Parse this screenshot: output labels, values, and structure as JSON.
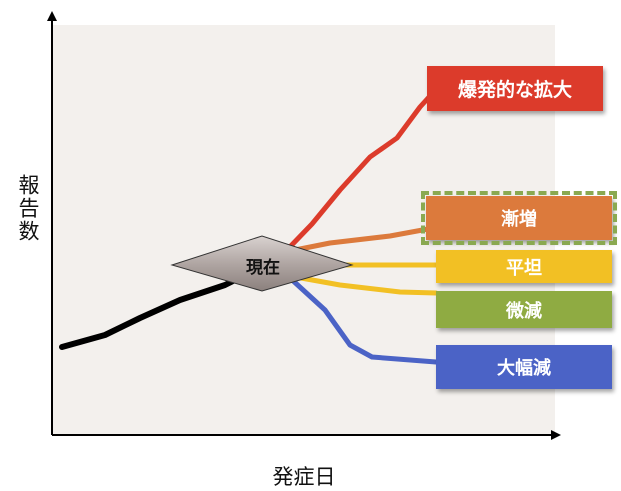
{
  "axes": {
    "y_label": "報告数",
    "x_label": "発症日"
  },
  "current_marker": {
    "label": "現在"
  },
  "scenarios": [
    {
      "id": "explode",
      "label": "爆発的な拡大",
      "color": "#dc3b2b"
    },
    {
      "id": "increase",
      "label": "漸増",
      "color": "#dc7a3c"
    },
    {
      "id": "flat",
      "label": "平坦",
      "color": "#f2c024"
    },
    {
      "id": "decrease",
      "label": "微減",
      "color": "#8fab42"
    },
    {
      "id": "sharp",
      "label": "大幅減",
      "color": "#4b63c6"
    }
  ],
  "colors": {
    "history_line": "#000000",
    "plot_background": "#f3f0ed",
    "diamond_fill": "#a89c99"
  }
}
